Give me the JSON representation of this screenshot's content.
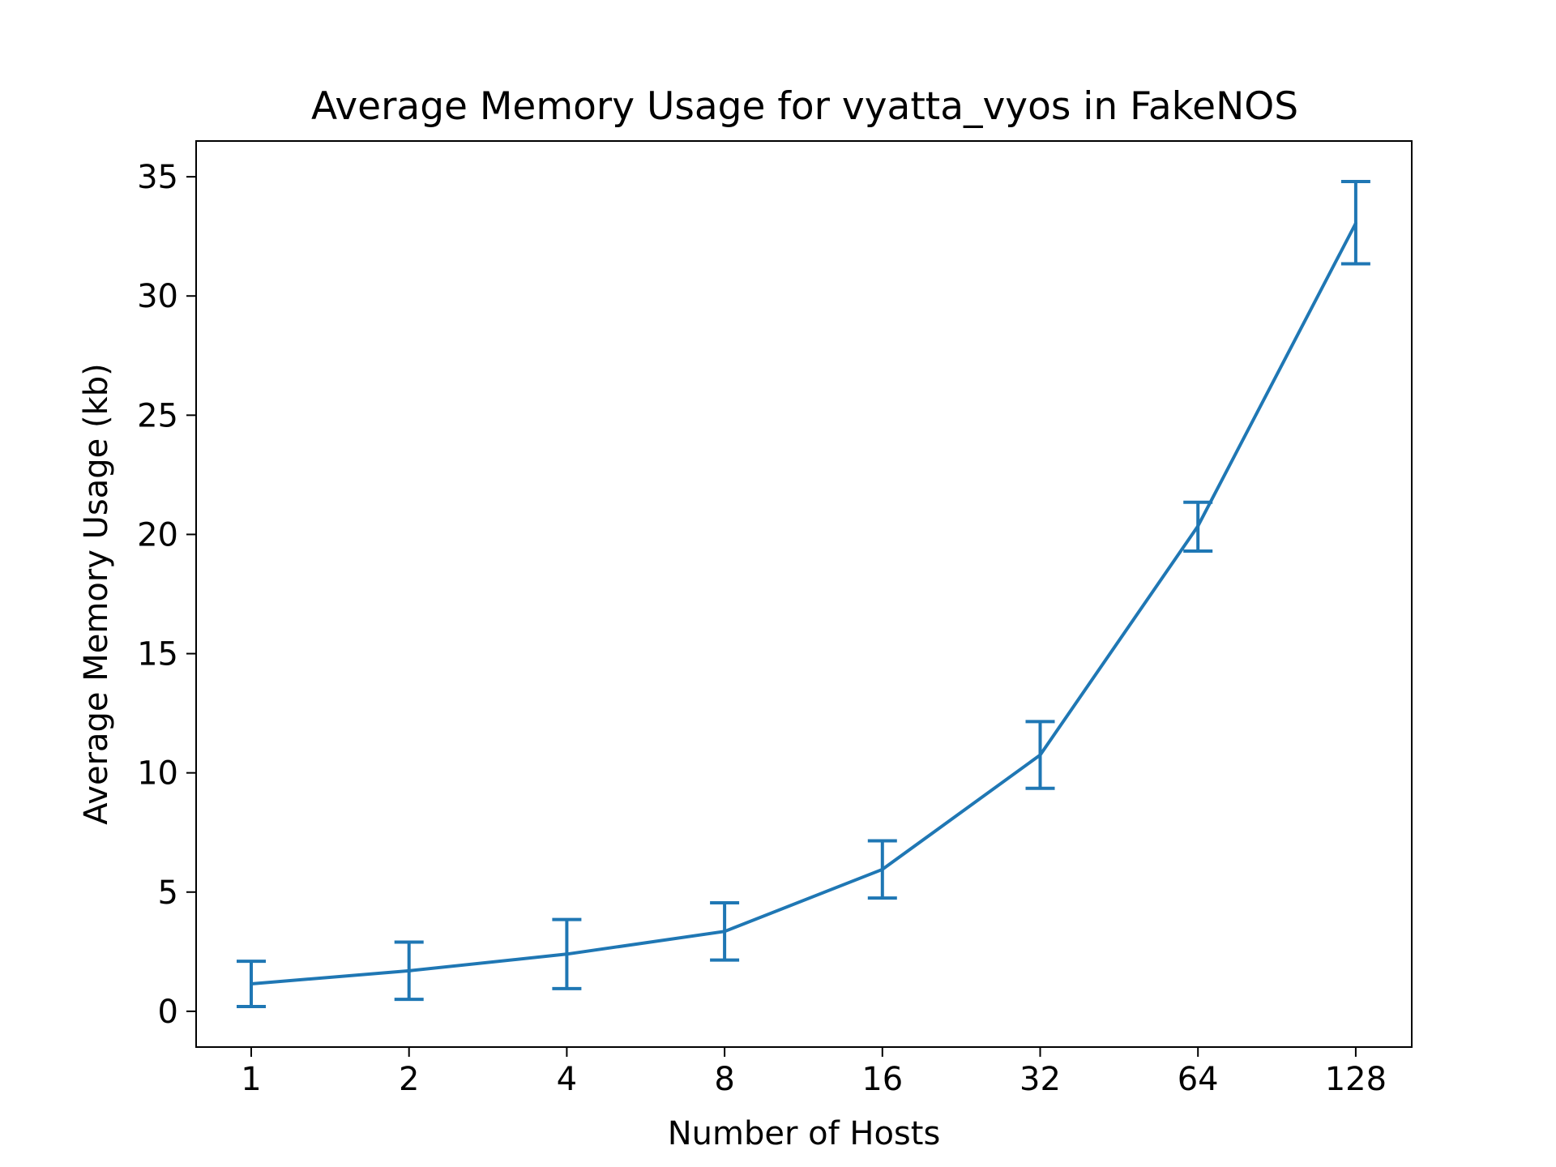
{
  "chart_data": {
    "type": "line",
    "title": "Average Memory Usage for vyatta_vyos in FakeNOS",
    "xlabel": "Number of Hosts",
    "ylabel": "Average Memory Usage (kb)",
    "x_scale": "log2",
    "categories": [
      "1",
      "2",
      "4",
      "8",
      "16",
      "32",
      "64",
      "128"
    ],
    "x": [
      1,
      2,
      4,
      8,
      16,
      32,
      64,
      128
    ],
    "yticks": [
      "0",
      "5",
      "10",
      "15",
      "20",
      "25",
      "30",
      "35"
    ],
    "ylim": [
      -1.5,
      36.5
    ],
    "grid": false,
    "color": "#1f77b4",
    "series": [
      {
        "values": [
          1.15,
          1.7,
          2.4,
          3.35,
          5.95,
          10.75,
          20.35,
          33.05
        ],
        "error_low": [
          0.2,
          0.5,
          0.95,
          2.15,
          4.75,
          9.35,
          19.3,
          31.35
        ],
        "error_high": [
          2.1,
          2.9,
          3.85,
          4.55,
          7.15,
          12.15,
          21.35,
          34.8
        ]
      }
    ]
  }
}
